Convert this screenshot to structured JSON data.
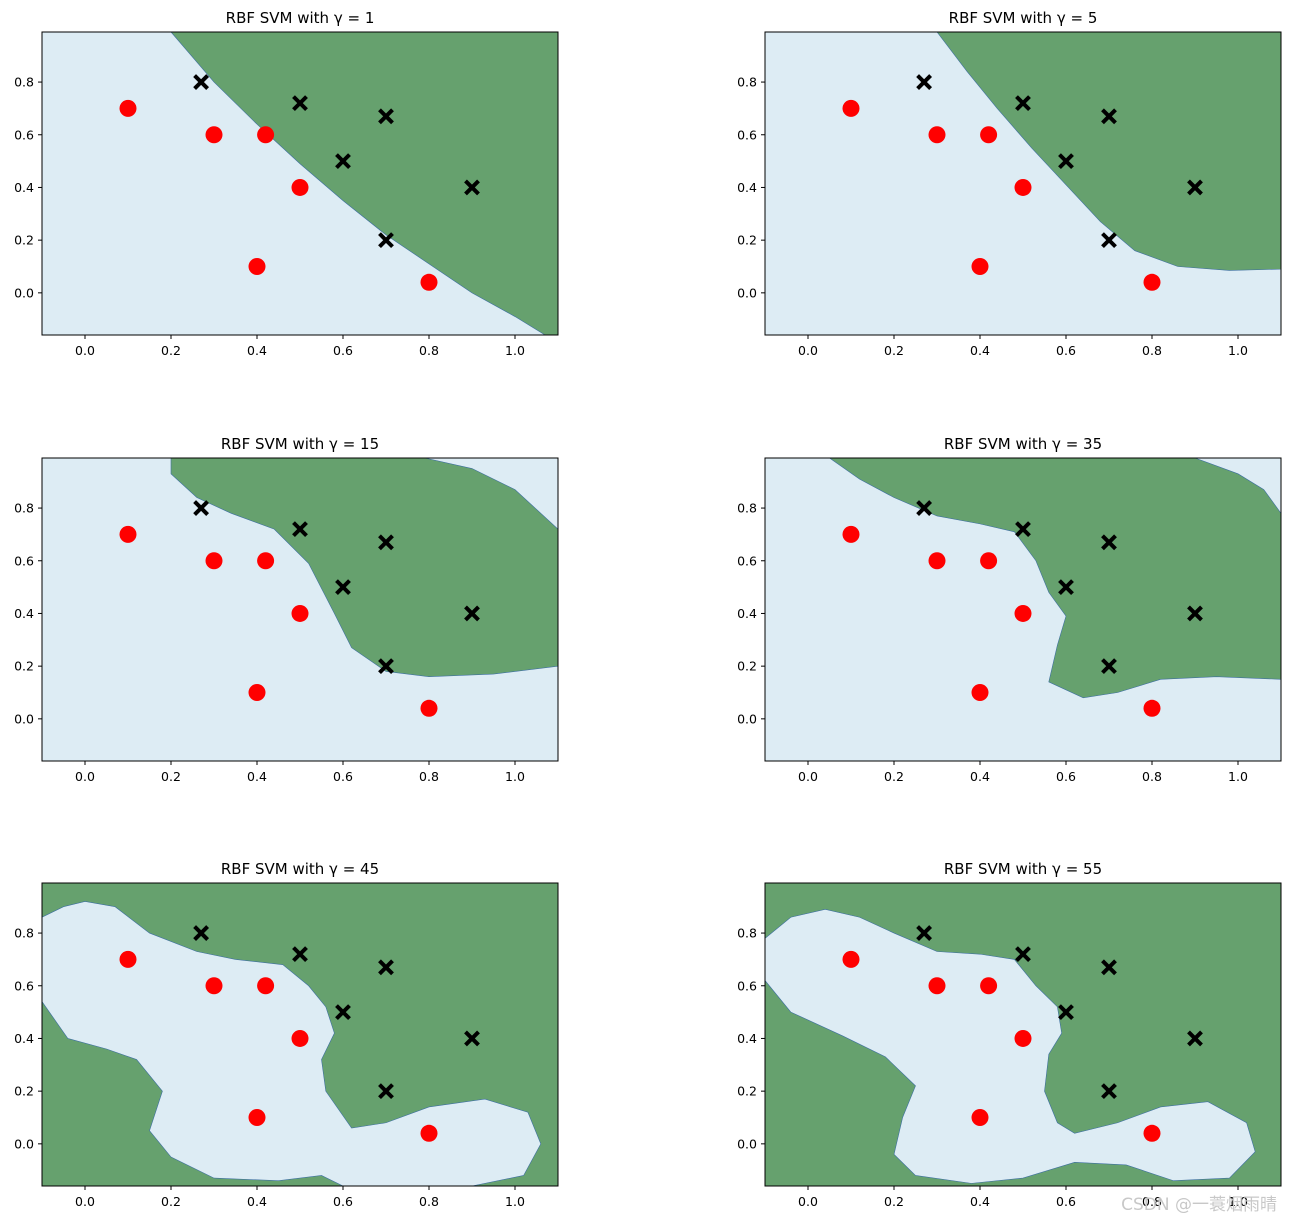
{
  "figure": {
    "watermark": "CSDN @一蓑烟雨晴",
    "colors": {
      "class_pos_region": "#66a16e",
      "class_neg_region": "#ddecf4",
      "circle_marker": "#ff0000",
      "cross_marker": "#000000"
    }
  },
  "chart_data": [
    {
      "type": "scatter",
      "title": "RBF SVM with γ = 1",
      "gamma": 1,
      "xlim": [
        -0.1,
        1.1
      ],
      "ylim": [
        -0.16,
        0.99
      ],
      "xticks": [
        "0.0",
        "0.2",
        "0.4",
        "0.6",
        "0.8",
        "1.0"
      ],
      "yticks": [
        "0.0",
        "0.2",
        "0.4",
        "0.6",
        "0.8"
      ],
      "series": [
        {
          "marker": "circle",
          "color": "red",
          "points": [
            [
              0.1,
              0.7
            ],
            [
              0.3,
              0.6
            ],
            [
              0.42,
              0.6
            ],
            [
              0.5,
              0.4
            ],
            [
              0.4,
              0.1
            ],
            [
              0.8,
              0.04
            ]
          ]
        },
        {
          "marker": "x",
          "color": "black",
          "points": [
            [
              0.27,
              0.8
            ],
            [
              0.5,
              0.72
            ],
            [
              0.7,
              0.67
            ],
            [
              0.6,
              0.5
            ],
            [
              0.9,
              0.4
            ],
            [
              0.7,
              0.2
            ]
          ]
        }
      ],
      "region_boundary": [
        [
          0.2,
          0.99
        ],
        [
          0.3,
          0.8
        ],
        [
          0.4,
          0.64
        ],
        [
          0.5,
          0.49
        ],
        [
          0.6,
          0.35
        ],
        [
          0.7,
          0.22
        ],
        [
          0.8,
          0.11
        ],
        [
          0.9,
          0.0
        ],
        [
          1.0,
          -0.09
        ],
        [
          1.07,
          -0.16
        ]
      ]
    },
    {
      "type": "scatter",
      "title": "RBF SVM with γ = 5",
      "gamma": 5,
      "xlim": [
        -0.1,
        1.1
      ],
      "ylim": [
        -0.16,
        0.99
      ],
      "xticks": [
        "0.0",
        "0.2",
        "0.4",
        "0.6",
        "0.8",
        "1.0"
      ],
      "yticks": [
        "0.0",
        "0.2",
        "0.4",
        "0.6",
        "0.8"
      ],
      "series": [
        {
          "marker": "circle",
          "color": "red",
          "points": [
            [
              0.1,
              0.7
            ],
            [
              0.3,
              0.6
            ],
            [
              0.42,
              0.6
            ],
            [
              0.5,
              0.4
            ],
            [
              0.4,
              0.1
            ],
            [
              0.8,
              0.04
            ]
          ]
        },
        {
          "marker": "x",
          "color": "black",
          "points": [
            [
              0.27,
              0.8
            ],
            [
              0.5,
              0.72
            ],
            [
              0.7,
              0.67
            ],
            [
              0.6,
              0.5
            ],
            [
              0.9,
              0.4
            ],
            [
              0.7,
              0.2
            ]
          ]
        }
      ],
      "region_boundary": [
        [
          0.3,
          0.99
        ],
        [
          0.37,
          0.84
        ],
        [
          0.44,
          0.7
        ],
        [
          0.52,
          0.55
        ],
        [
          0.6,
          0.41
        ],
        [
          0.68,
          0.27
        ],
        [
          0.76,
          0.16
        ],
        [
          0.86,
          0.1
        ],
        [
          0.98,
          0.085
        ],
        [
          1.1,
          0.09
        ]
      ]
    },
    {
      "type": "scatter",
      "title": "RBF SVM with γ = 15",
      "gamma": 15,
      "xlim": [
        -0.1,
        1.1
      ],
      "ylim": [
        -0.16,
        0.99
      ],
      "xticks": [
        "0.0",
        "0.2",
        "0.4",
        "0.6",
        "0.8",
        "1.0"
      ],
      "yticks": [
        "0.0",
        "0.2",
        "0.4",
        "0.6",
        "0.8"
      ],
      "series": [
        {
          "marker": "circle",
          "color": "red",
          "points": [
            [
              0.1,
              0.7
            ],
            [
              0.3,
              0.6
            ],
            [
              0.42,
              0.6
            ],
            [
              0.5,
              0.4
            ],
            [
              0.4,
              0.1
            ],
            [
              0.8,
              0.04
            ]
          ]
        },
        {
          "marker": "x",
          "color": "black",
          "points": [
            [
              0.27,
              0.8
            ],
            [
              0.5,
              0.72
            ],
            [
              0.7,
              0.67
            ],
            [
              0.6,
              0.5
            ],
            [
              0.9,
              0.4
            ],
            [
              0.7,
              0.2
            ]
          ]
        }
      ],
      "region_boundary": [
        [
          0.2,
          0.99
        ],
        [
          0.2,
          0.93
        ],
        [
          0.26,
          0.84
        ],
        [
          0.34,
          0.78
        ],
        [
          0.44,
          0.72
        ],
        [
          0.52,
          0.59
        ],
        [
          0.58,
          0.4
        ],
        [
          0.62,
          0.27
        ],
        [
          0.7,
          0.18
        ],
        [
          0.8,
          0.16
        ],
        [
          0.95,
          0.17
        ],
        [
          1.1,
          0.2
        ]
      ],
      "region_boundary_top": [
        [
          0.79,
          0.99
        ],
        [
          0.9,
          0.95
        ],
        [
          1.0,
          0.87
        ],
        [
          1.1,
          0.72
        ]
      ]
    },
    {
      "type": "scatter",
      "title": "RBF SVM with γ = 35",
      "gamma": 35,
      "xlim": [
        -0.1,
        1.1
      ],
      "ylim": [
        -0.16,
        0.99
      ],
      "xticks": [
        "0.0",
        "0.2",
        "0.4",
        "0.6",
        "0.8",
        "1.0"
      ],
      "yticks": [
        "0.0",
        "0.2",
        "0.4",
        "0.6",
        "0.8"
      ],
      "series": [
        {
          "marker": "circle",
          "color": "red",
          "points": [
            [
              0.1,
              0.7
            ],
            [
              0.3,
              0.6
            ],
            [
              0.42,
              0.6
            ],
            [
              0.5,
              0.4
            ],
            [
              0.4,
              0.1
            ],
            [
              0.8,
              0.04
            ]
          ]
        },
        {
          "marker": "x",
          "color": "black",
          "points": [
            [
              0.27,
              0.8
            ],
            [
              0.5,
              0.72
            ],
            [
              0.7,
              0.67
            ],
            [
              0.6,
              0.5
            ],
            [
              0.9,
              0.4
            ],
            [
              0.7,
              0.2
            ]
          ]
        }
      ],
      "region_boundary": [
        [
          0.05,
          0.99
        ],
        [
          0.12,
          0.91
        ],
        [
          0.2,
          0.84
        ],
        [
          0.3,
          0.77
        ],
        [
          0.4,
          0.74
        ],
        [
          0.48,
          0.71
        ],
        [
          0.53,
          0.6
        ],
        [
          0.56,
          0.48
        ],
        [
          0.6,
          0.39
        ],
        [
          0.58,
          0.28
        ],
        [
          0.56,
          0.14
        ],
        [
          0.64,
          0.08
        ],
        [
          0.72,
          0.1
        ],
        [
          0.82,
          0.15
        ],
        [
          0.95,
          0.16
        ],
        [
          1.1,
          0.15
        ]
      ],
      "region_boundary_top": [
        [
          0.9,
          0.99
        ],
        [
          1.0,
          0.93
        ],
        [
          1.06,
          0.87
        ],
        [
          1.1,
          0.78
        ]
      ]
    },
    {
      "type": "scatter",
      "title": "RBF SVM with γ = 45",
      "gamma": 45,
      "xlim": [
        -0.1,
        1.1
      ],
      "ylim": [
        -0.16,
        0.99
      ],
      "xticks": [
        "0.0",
        "0.2",
        "0.4",
        "0.6",
        "0.8",
        "1.0"
      ],
      "yticks": [
        "0.0",
        "0.2",
        "0.4",
        "0.6",
        "0.8"
      ],
      "series": [
        {
          "marker": "circle",
          "color": "red",
          "points": [
            [
              0.1,
              0.7
            ],
            [
              0.3,
              0.6
            ],
            [
              0.42,
              0.6
            ],
            [
              0.5,
              0.4
            ],
            [
              0.4,
              0.1
            ],
            [
              0.8,
              0.04
            ]
          ]
        },
        {
          "marker": "x",
          "color": "black",
          "points": [
            [
              0.27,
              0.8
            ],
            [
              0.5,
              0.72
            ],
            [
              0.7,
              0.67
            ],
            [
              0.6,
              0.5
            ],
            [
              0.9,
              0.4
            ],
            [
              0.7,
              0.2
            ]
          ]
        }
      ],
      "light_region": [
        [
          -0.1,
          0.86
        ],
        [
          -0.05,
          0.9
        ],
        [
          0.0,
          0.92
        ],
        [
          0.07,
          0.9
        ],
        [
          0.15,
          0.8
        ],
        [
          0.26,
          0.73
        ],
        [
          0.35,
          0.7
        ],
        [
          0.46,
          0.68
        ],
        [
          0.52,
          0.6
        ],
        [
          0.56,
          0.52
        ],
        [
          0.58,
          0.42
        ],
        [
          0.55,
          0.32
        ],
        [
          0.56,
          0.2
        ],
        [
          0.62,
          0.06
        ],
        [
          0.7,
          0.08
        ],
        [
          0.8,
          0.14
        ],
        [
          0.93,
          0.17
        ],
        [
          1.03,
          0.12
        ],
        [
          1.06,
          0.0
        ],
        [
          1.02,
          -0.12
        ],
        [
          0.9,
          -0.16
        ],
        [
          0.6,
          -0.16
        ],
        [
          0.55,
          -0.12
        ],
        [
          0.45,
          -0.14
        ],
        [
          0.3,
          -0.13
        ],
        [
          0.2,
          -0.05
        ],
        [
          0.15,
          0.05
        ],
        [
          0.18,
          0.2
        ],
        [
          0.12,
          0.32
        ],
        [
          0.05,
          0.36
        ],
        [
          -0.04,
          0.4
        ],
        [
          -0.1,
          0.54
        ]
      ]
    },
    {
      "type": "scatter",
      "title": "RBF SVM with γ = 55",
      "gamma": 55,
      "xlim": [
        -0.1,
        1.1
      ],
      "ylim": [
        -0.16,
        0.99
      ],
      "xticks": [
        "0.0",
        "0.2",
        "0.4",
        "0.6",
        "0.8",
        "1.0"
      ],
      "yticks": [
        "0.0",
        "0.2",
        "0.4",
        "0.6",
        "0.8"
      ],
      "series": [
        {
          "marker": "circle",
          "color": "red",
          "points": [
            [
              0.1,
              0.7
            ],
            [
              0.3,
              0.6
            ],
            [
              0.42,
              0.6
            ],
            [
              0.5,
              0.4
            ],
            [
              0.4,
              0.1
            ],
            [
              0.8,
              0.04
            ]
          ]
        },
        {
          "marker": "x",
          "color": "black",
          "points": [
            [
              0.27,
              0.8
            ],
            [
              0.5,
              0.72
            ],
            [
              0.7,
              0.67
            ],
            [
              0.6,
              0.5
            ],
            [
              0.9,
              0.4
            ],
            [
              0.7,
              0.2
            ]
          ]
        }
      ],
      "light_region": [
        [
          -0.1,
          0.78
        ],
        [
          -0.04,
          0.86
        ],
        [
          0.04,
          0.89
        ],
        [
          0.12,
          0.86
        ],
        [
          0.2,
          0.8
        ],
        [
          0.3,
          0.73
        ],
        [
          0.4,
          0.72
        ],
        [
          0.48,
          0.7
        ],
        [
          0.53,
          0.6
        ],
        [
          0.58,
          0.52
        ],
        [
          0.59,
          0.42
        ],
        [
          0.56,
          0.34
        ],
        [
          0.55,
          0.2
        ],
        [
          0.58,
          0.08
        ],
        [
          0.62,
          0.04
        ],
        [
          0.72,
          0.08
        ],
        [
          0.82,
          0.14
        ],
        [
          0.93,
          0.16
        ],
        [
          1.02,
          0.08
        ],
        [
          1.04,
          -0.03
        ],
        [
          0.98,
          -0.13
        ],
        [
          0.85,
          -0.14
        ],
        [
          0.74,
          -0.08
        ],
        [
          0.62,
          -0.07
        ],
        [
          0.5,
          -0.13
        ],
        [
          0.38,
          -0.15
        ],
        [
          0.25,
          -0.12
        ],
        [
          0.2,
          -0.04
        ],
        [
          0.22,
          0.1
        ],
        [
          0.25,
          0.22
        ],
        [
          0.18,
          0.33
        ],
        [
          0.08,
          0.41
        ],
        [
          -0.04,
          0.5
        ],
        [
          -0.1,
          0.62
        ]
      ]
    }
  ]
}
